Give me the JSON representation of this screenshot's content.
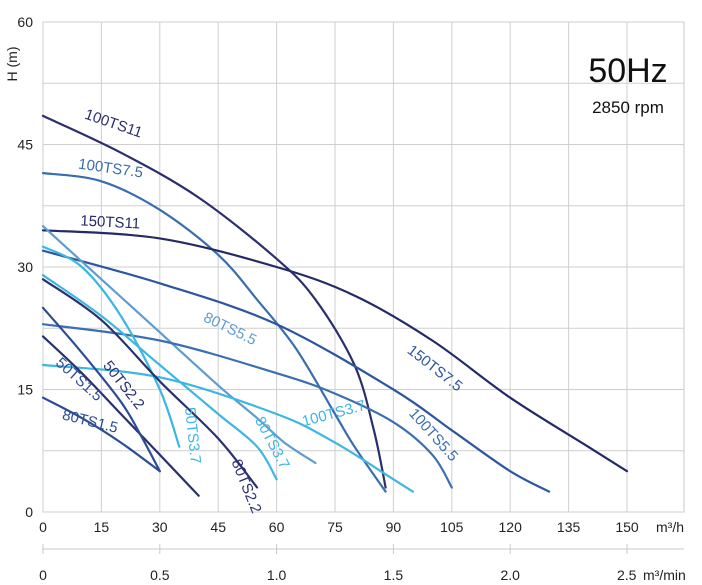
{
  "chart_data": {
    "type": "line",
    "title": "50Hz",
    "subtitle": "2850 rpm",
    "ylabel": "H (m)",
    "xlabel": "m³/h",
    "x2label": "m³/min",
    "xlim": [
      0,
      150
    ],
    "ylim": [
      0,
      60
    ],
    "x_ticks": [
      0,
      15,
      30,
      45,
      60,
      75,
      90,
      105,
      120,
      135,
      150
    ],
    "y_ticks": [
      0,
      15,
      30,
      45,
      60
    ],
    "x2_ticks": [
      "0",
      "0.5",
      "1.0",
      "1.5",
      "2.0",
      "2.5"
    ],
    "x2_tick_values": [
      0,
      0.5,
      1.0,
      1.5,
      2.0,
      2.5
    ],
    "grid": true,
    "series": [
      {
        "name": "100TS11",
        "color": "#2b2f6e",
        "x": [
          0,
          20,
          40,
          60,
          70,
          80,
          85,
          88
        ],
        "y": [
          48.5,
          44,
          38.5,
          31,
          26,
          18,
          10,
          3
        ]
      },
      {
        "name": "100TS7.5",
        "color": "#3a6db0",
        "x": [
          0,
          15,
          30,
          45,
          55,
          65,
          75,
          80,
          88
        ],
        "y": [
          41.5,
          40.5,
          37,
          31.5,
          26,
          20,
          12,
          8,
          2.5
        ]
      },
      {
        "name": "150TS11",
        "color": "#232a66",
        "x": [
          0,
          30,
          60,
          80,
          100,
          120,
          140,
          150
        ],
        "y": [
          34.5,
          33.5,
          30,
          26.5,
          21,
          14,
          8,
          5
        ]
      },
      {
        "name": "150TS7.5",
        "color": "#2e56a0",
        "x": [
          0,
          30,
          60,
          90,
          105,
          120,
          130
        ],
        "y": [
          32,
          28,
          23,
          15,
          10,
          5,
          2.5
        ]
      },
      {
        "name": "80TS5.5",
        "color": "#5f9cd0",
        "x": [
          0,
          15,
          30,
          45,
          55,
          62,
          70
        ],
        "y": [
          35,
          28.5,
          22,
          15.5,
          11.5,
          8.5,
          6
        ]
      },
      {
        "name": "100TS5.5",
        "color": "#3b6fb3",
        "x": [
          0,
          30,
          60,
          75,
          90,
          100,
          105
        ],
        "y": [
          23,
          21,
          17,
          14.5,
          11,
          7,
          3
        ]
      },
      {
        "name": "100TS3.7",
        "color": "#3cb6e3",
        "x": [
          0,
          30,
          60,
          75,
          90,
          95
        ],
        "y": [
          18,
          16.5,
          12,
          8.5,
          4,
          2.5
        ]
      },
      {
        "name": "80TS3.7",
        "color": "#3cb6e3",
        "x": [
          0,
          15,
          30,
          45,
          55,
          60
        ],
        "y": [
          29,
          24,
          18,
          12,
          8,
          4
        ]
      },
      {
        "name": "50TS3.7",
        "color": "#3cb6e3",
        "x": [
          0,
          10,
          20,
          30,
          35
        ],
        "y": [
          32.5,
          30,
          24,
          15,
          8
        ]
      },
      {
        "name": "80TS2.2",
        "color": "#2a3170",
        "x": [
          0,
          15,
          30,
          45,
          55
        ],
        "y": [
          28.5,
          23.5,
          16,
          9,
          3
        ]
      },
      {
        "name": "50TS2.2",
        "color": "#2a3170",
        "x": [
          0,
          10,
          20,
          30,
          40
        ],
        "y": [
          21.5,
          17,
          12,
          7,
          2
        ]
      },
      {
        "name": "50TS1.5",
        "color": "#2c4d96",
        "x": [
          0,
          10,
          20,
          25,
          30
        ],
        "y": [
          25,
          19.5,
          13.5,
          9.5,
          5
        ]
      },
      {
        "name": "80TS1.5",
        "color": "#2c4d96",
        "x": [
          0,
          10,
          20,
          30
        ],
        "y": [
          14,
          11.5,
          8.5,
          5
        ]
      }
    ]
  }
}
